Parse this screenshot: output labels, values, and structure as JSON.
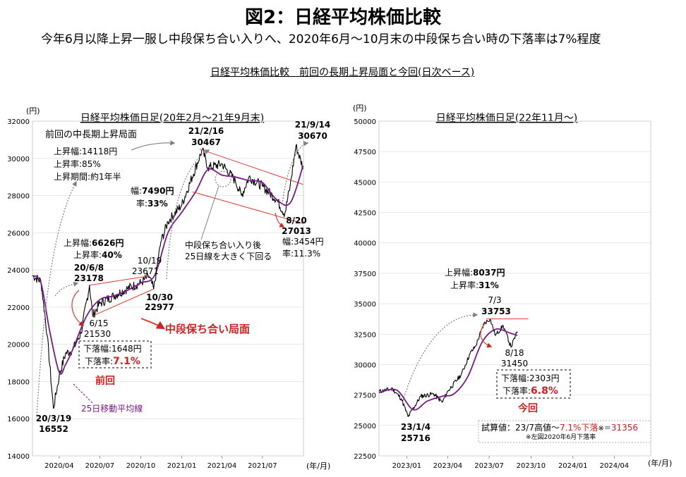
{
  "header": {
    "title": "図2：日経平均株価比較",
    "subtitle": "今年6月以降上昇一服し中段保ち合い入りへ、2020年6月～10月末の中段保ち合い時の下落率は7%程度",
    "section_title": "日経平均株価比較　前回の長期上昇局面と今回(日次ベース)"
  },
  "colors": {
    "price": "#000000",
    "ma25": "#7a1a8a",
    "channel": "#e03c31",
    "dotted": "#808080",
    "accent_red": "#d32020"
  },
  "chart_data": [
    {
      "type": "line",
      "title": "日経平均株価日足(20年2月～21年9月末)",
      "ylabel": "(円)",
      "xlabel": "(年/月)",
      "ylim": [
        14000,
        32000
      ],
      "yticks": [
        "14000",
        "16000",
        "18000",
        "20000",
        "22000",
        "24000",
        "26000",
        "28000",
        "30000",
        "32000"
      ],
      "xticks": [
        "2020/04",
        "2020/07",
        "2020/10",
        "2021/01",
        "2021/04",
        "2021/07"
      ],
      "series": [
        {
          "name": "日経平均株価",
          "x": [
            "2020/02/01",
            "2020/02/20",
            "2020/03/05",
            "2020/03/19",
            "2020/04/01",
            "2020/04/15",
            "2020/05/01",
            "2020/05/20",
            "2020/06/08",
            "2020/06/15",
            "2020/07/01",
            "2020/08/01",
            "2020/09/01",
            "2020/10/01",
            "2020/10/19",
            "2020/10/30",
            "2020/11/15",
            "2020/12/01",
            "2021/01/01",
            "2021/02/16",
            "2021/03/01",
            "2021/04/01",
            "2021/05/01",
            "2021/05/15",
            "2021/06/01",
            "2021/07/01",
            "2021/08/01",
            "2021/08/20",
            "2021/09/01",
            "2021/09/14",
            "2021/09/30"
          ],
          "values": [
            23700,
            23400,
            20500,
            16552,
            18300,
            19500,
            19700,
            20600,
            23178,
            21530,
            22200,
            22600,
            23000,
            23300,
            23671,
            22977,
            25500,
            26600,
            27500,
            30467,
            29500,
            29700,
            28800,
            28000,
            29000,
            28500,
            27800,
            27013,
            28500,
            30670,
            29500
          ]
        },
        {
          "name": "25日移動平均線",
          "x": [
            "2020/02/01",
            "2020/02/20",
            "2020/03/10",
            "2020/04/01",
            "2020/04/15",
            "2020/05/01",
            "2020/06/01",
            "2020/07/01",
            "2020/08/01",
            "2020/09/01",
            "2020/10/01",
            "2020/11/01",
            "2020/12/01",
            "2021/01/01",
            "2021/02/01",
            "2021/03/01",
            "2021/04/01",
            "2021/05/01",
            "2021/06/01",
            "2021/07/01",
            "2021/08/01",
            "2021/09/01",
            "2021/09/30"
          ],
          "values": [
            23700,
            23300,
            20800,
            18500,
            18900,
            19700,
            21500,
            22400,
            22600,
            22900,
            23300,
            23700,
            26000,
            27100,
            28200,
            29400,
            29100,
            29000,
            28800,
            28700,
            27800,
            27600,
            29600
          ]
        }
      ],
      "annotations": {
        "prev_label": "前回の中長期上昇局面",
        "rise1": [
          "上昇幅:14118円",
          "上昇率:85%",
          "上昇期間:約1年半"
        ],
        "rise2_w_pre": "上昇幅:",
        "rise2_w_val": "6626円",
        "rise2_r_pre": "上昇率:",
        "rise2_r_val": "40%",
        "rise3_w_pre": "幅:",
        "rise3_w_val": "7490円",
        "rise3_r_pre": "率:",
        "rise3_r_val": "33%",
        "p_0319": [
          "20/3/19",
          "16552"
        ],
        "p_0608": [
          "20/6/8",
          "23178"
        ],
        "p_0615": [
          "6/15",
          "21530"
        ],
        "p_1019": [
          "10/19",
          "23671"
        ],
        "p_1030": [
          "10/30",
          "22977"
        ],
        "p_0216": [
          "21/2/16",
          "30467"
        ],
        "p_0914": [
          "21/9/14",
          "30670"
        ],
        "p_0820": [
          "8/20",
          "27013"
        ],
        "drop_after": [
          "幅:3454円",
          "率:11.3%"
        ],
        "midnote": [
          "中段保ち合い入り後",
          "25日線を大きく下回る"
        ],
        "consolidation": "中段保ち合い局面",
        "drop_w": "下落幅:1648円",
        "drop_r_pre": "下落率:",
        "drop_r_val": "7.1%",
        "prev": "前回",
        "ma_label": "25日移動平均線"
      }
    },
    {
      "type": "line",
      "title": "日経平均株価日足(22年11月～)",
      "ylabel": "(円)",
      "xlabel": "(年/月)",
      "ylim": [
        22500,
        50000
      ],
      "yticks": [
        "22500",
        "25000",
        "27500",
        "30000",
        "32500",
        "35000",
        "37500",
        "40000",
        "42500",
        "45000",
        "47500",
        "50000"
      ],
      "xticks": [
        "2023/01",
        "2023/04",
        "2023/07",
        "2023/10",
        "2024/01",
        "2024/04"
      ],
      "series": [
        {
          "name": "日経平均株価",
          "x": [
            "2022/11/01",
            "2022/12/01",
            "2022/12/20",
            "2023/01/04",
            "2023/02/01",
            "2023/03/01",
            "2023/03/20",
            "2023/04/01",
            "2023/05/01",
            "2023/05/20",
            "2023/06/01",
            "2023/06/20",
            "2023/07/03",
            "2023/07/15",
            "2023/08/01",
            "2023/08/18",
            "2023/09/01"
          ],
          "values": [
            27800,
            28000,
            27200,
            25716,
            27400,
            27600,
            26900,
            27800,
            29200,
            30900,
            31500,
            33400,
            33753,
            32400,
            33200,
            31450,
            32700
          ]
        },
        {
          "name": "25日移動平均線",
          "x": [
            "2022/11/01",
            "2022/12/10",
            "2023/01/15",
            "2023/02/15",
            "2023/03/20",
            "2023/04/15",
            "2023/05/15",
            "2023/06/15",
            "2023/07/15",
            "2023/08/15",
            "2023/09/01"
          ],
          "values": [
            27700,
            27900,
            26300,
            27000,
            27400,
            27600,
            29000,
            31800,
            32900,
            32600,
            32400
          ]
        }
      ],
      "annotations": {
        "rise_w_pre": "上昇幅:",
        "rise_w_val": "8037円",
        "rise_r_pre": "上昇率:",
        "rise_r_val": "31%",
        "p_0703": [
          "7/3",
          "33753"
        ],
        "p_0818": [
          "8/18",
          "31450"
        ],
        "p_0104": [
          "23/1/4",
          "25716"
        ],
        "drop_w": "下落幅:2303円",
        "drop_r_pre": "下落率:",
        "drop_r_val": "6.8%",
        "now": "今回",
        "trial_pre": "試算値：23/7高値～",
        "trial_red": "7.1%下落",
        "trial_mid": "※＝",
        "trial_val": "31356",
        "trial_note": "※左図2020年6月下落率"
      }
    }
  ]
}
